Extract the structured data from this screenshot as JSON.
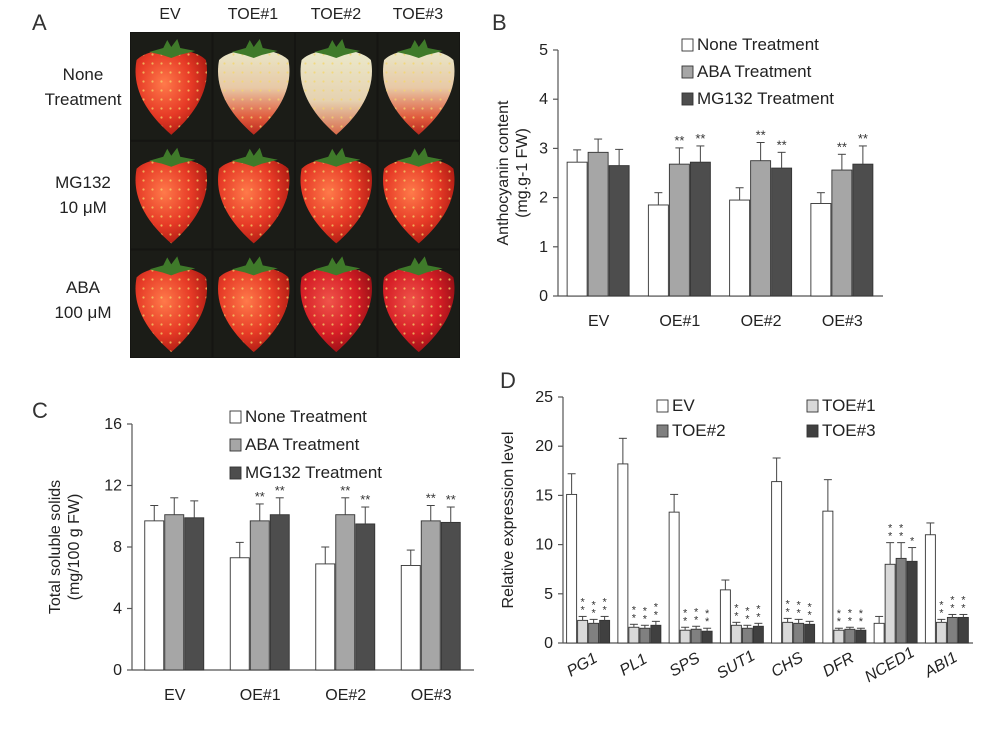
{
  "panels": {
    "a": "A",
    "b": "B",
    "c": "C",
    "d": "D"
  },
  "photo_panel": {
    "columns": [
      "EV",
      "TOE#1",
      "TOE#2",
      "TOE#3"
    ],
    "rows": [
      {
        "line1": "None",
        "line2": "Treatment"
      },
      {
        "line1": "MG132",
        "line2": "10 μM"
      },
      {
        "line1": "ABA",
        "line2": "100 μM"
      }
    ]
  },
  "colors": {
    "none": "#ffffff",
    "aba": "#a6a6a6",
    "mg132": "#4d4d4d",
    "axis": "#555555"
  },
  "chart_data": [
    {
      "id": "B",
      "type": "bar",
      "ylabel": "Anthocyanin content\n(mg.g-1 FW)",
      "ylabel_lines": [
        "Anthocyanin content",
        "(mg.g-1 FW)"
      ],
      "ylim": [
        0,
        5
      ],
      "yticks": [
        "0",
        "1",
        "2",
        "3",
        "4",
        "5"
      ],
      "categories": [
        "EV",
        "OE#1",
        "OE#2",
        "OE#3"
      ],
      "legend": [
        "None Treatment",
        "ABA Treatment",
        "MG132 Treatment"
      ],
      "series": [
        {
          "name": "None Treatment",
          "color": "#ffffff",
          "values": [
            2.72,
            1.85,
            1.95,
            1.88
          ],
          "errors": [
            0.25,
            0.25,
            0.25,
            0.22
          ],
          "marks": [
            "",
            "",
            "",
            ""
          ]
        },
        {
          "name": "ABA Treatment",
          "color": "#a6a6a6",
          "values": [
            2.92,
            2.68,
            2.75,
            2.56
          ],
          "errors": [
            0.27,
            0.33,
            0.37,
            0.32
          ],
          "marks": [
            "",
            "**",
            "**",
            "**"
          ]
        },
        {
          "name": "MG132 Treatment",
          "color": "#4d4d4d",
          "values": [
            2.65,
            2.72,
            2.6,
            2.68
          ],
          "errors": [
            0.33,
            0.33,
            0.32,
            0.37
          ],
          "marks": [
            "",
            "**",
            "**",
            "**"
          ]
        }
      ]
    },
    {
      "id": "C",
      "type": "bar",
      "ylabel": "Total soluble solids\n(mg/100 g FW)",
      "ylabel_lines": [
        "Total soluble solids",
        "(mg/100 g FW)"
      ],
      "ylim": [
        0,
        16
      ],
      "yticks": [
        "0",
        "4",
        "8",
        "12",
        "16"
      ],
      "categories": [
        "EV",
        "OE#1",
        "OE#2",
        "OE#3"
      ],
      "legend": [
        "None Treatment",
        "ABA Treatment",
        "MG132 Treatment"
      ],
      "series": [
        {
          "name": "None Treatment",
          "color": "#ffffff",
          "values": [
            9.7,
            7.3,
            6.9,
            6.8
          ],
          "errors": [
            1.0,
            1.0,
            1.1,
            1.0
          ],
          "marks": [
            "",
            "",
            "",
            ""
          ]
        },
        {
          "name": "ABA Treatment",
          "color": "#a6a6a6",
          "values": [
            10.1,
            9.7,
            10.1,
            9.7
          ],
          "errors": [
            1.1,
            1.1,
            1.1,
            1.0
          ],
          "marks": [
            "",
            "**",
            "**",
            "**"
          ]
        },
        {
          "name": "MG132 Treatment",
          "color": "#4d4d4d",
          "values": [
            9.9,
            10.1,
            9.5,
            9.6
          ],
          "errors": [
            1.1,
            1.1,
            1.1,
            1.0
          ],
          "marks": [
            "",
            "**",
            "**",
            "**"
          ]
        }
      ]
    },
    {
      "id": "D",
      "type": "bar",
      "ylabel": "Relative expression level",
      "ylim": [
        0,
        25
      ],
      "yticks": [
        "0",
        "5",
        "10",
        "15",
        "20",
        "25"
      ],
      "categories": [
        "PG1",
        "PL1",
        "SPS",
        "SUT1",
        "CHS",
        "DFR",
        "NCED1",
        "ABI1"
      ],
      "legend": [
        "EV",
        "TOE#1",
        "TOE#2",
        "TOE#3"
      ],
      "series": [
        {
          "name": "EV",
          "color": "#ffffff",
          "values": [
            15.1,
            18.2,
            13.3,
            5.4,
            16.4,
            13.4,
            2.0,
            11.0
          ],
          "errors": [
            2.1,
            2.6,
            1.8,
            1.0,
            2.4,
            3.2,
            0.7,
            1.2
          ],
          "marks": [
            "",
            "",
            "",
            "",
            "",
            "",
            "",
            ""
          ]
        },
        {
          "name": "TOE#1",
          "color": "#d9d9d9",
          "values": [
            2.3,
            1.6,
            1.3,
            1.8,
            2.1,
            1.3,
            8.0,
            2.1
          ],
          "errors": [
            0.4,
            0.3,
            0.3,
            0.3,
            0.4,
            0.2,
            2.2,
            0.3
          ],
          "marks": [
            "**",
            "**",
            "**",
            "**",
            "**",
            "**",
            "**",
            "**"
          ]
        },
        {
          "name": "TOE#2",
          "color": "#808080",
          "values": [
            2.0,
            1.5,
            1.4,
            1.5,
            2.0,
            1.4,
            8.6,
            2.6
          ],
          "errors": [
            0.4,
            0.3,
            0.3,
            0.3,
            0.4,
            0.2,
            1.6,
            0.3
          ],
          "marks": [
            "**",
            "**",
            "**",
            "**",
            "**",
            "**",
            "**",
            "**"
          ]
        },
        {
          "name": "TOE#3",
          "color": "#404040",
          "values": [
            2.3,
            1.8,
            1.2,
            1.7,
            1.9,
            1.3,
            8.3,
            2.6
          ],
          "errors": [
            0.4,
            0.4,
            0.3,
            0.3,
            0.3,
            0.2,
            1.4,
            0.3
          ],
          "marks": [
            "**",
            "**",
            "**",
            "**",
            "**",
            "**",
            "*",
            "**"
          ]
        }
      ]
    }
  ]
}
